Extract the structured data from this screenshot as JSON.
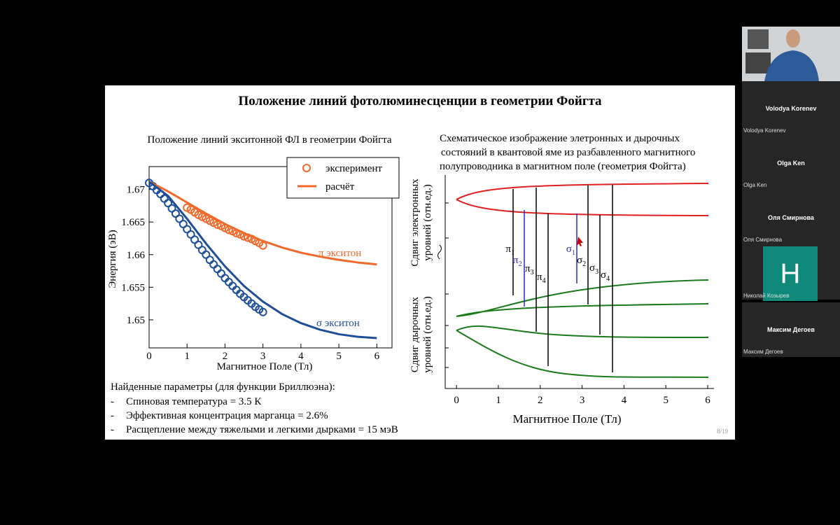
{
  "slide": {
    "title": "Положение линий фотолюминесценции в геометрии Фойгта",
    "page": "8/19",
    "left_chart": {
      "title": "Положение линий экситонной ФЛ в геометрии Фойгта",
      "x_label": "Магнитное Поле (Тл)",
      "y_label": "Энергия (эВ)",
      "xlim": [
        0,
        6.4
      ],
      "ylim": [
        1.6457,
        1.6735
      ],
      "xticks": [
        0,
        1,
        2,
        3,
        4,
        5,
        6
      ],
      "yticks": [
        1.65,
        1.655,
        1.66,
        1.665,
        1.67
      ],
      "legend": [
        "эксперимент",
        "расчёт"
      ],
      "pi_label": "π экситон",
      "sigma_label": "σ экситон",
      "series": [
        {
          "name": "π эксперимент",
          "color": "#f26a2b",
          "kind": "points",
          "x": [
            1,
            1.1,
            1.2,
            1.3,
            1.4,
            1.5,
            1.6,
            1.7,
            1.8,
            1.9,
            2,
            2.1,
            2.2,
            2.3,
            2.4,
            2.5,
            2.6,
            2.7,
            2.8,
            2.9,
            3
          ],
          "values": [
            1.6672,
            1.6669,
            1.6665,
            1.6661,
            1.6658,
            1.6655,
            1.6652,
            1.6649,
            1.6646,
            1.6644,
            1.6641,
            1.6638,
            1.6636,
            1.6633,
            1.6631,
            1.6628,
            1.6626,
            1.6624,
            1.6621,
            1.6618,
            1.6614
          ]
        },
        {
          "name": "σ эксперимент",
          "color": "#1f4e99",
          "kind": "points",
          "x": [
            0,
            0.1,
            0.2,
            0.3,
            0.4,
            0.5,
            0.6,
            0.7,
            0.8,
            0.9,
            1,
            1.1,
            1.2,
            1.3,
            1.4,
            1.5,
            1.6,
            1.7,
            1.8,
            1.9,
            2,
            2.1,
            2.2,
            2.3,
            2.4,
            2.5,
            2.6,
            2.7,
            2.8,
            2.9,
            3
          ],
          "values": [
            1.671,
            1.6705,
            1.6699,
            1.6693,
            1.6686,
            1.6679,
            1.6671,
            1.6663,
            1.6655,
            1.6647,
            1.6639,
            1.6631,
            1.6623,
            1.6615,
            1.6607,
            1.66,
            1.6592,
            1.6585,
            1.6578,
            1.6571,
            1.6564,
            1.6558,
            1.6552,
            1.6546,
            1.654,
            1.6535,
            1.653,
            1.6525,
            1.652,
            1.6516,
            1.6512
          ]
        },
        {
          "name": "π расчёт",
          "color": "#f26a2b",
          "kind": "line",
          "x": [
            0,
            0.5,
            1,
            1.5,
            2,
            2.5,
            3,
            3.5,
            4,
            4.5,
            5,
            5.5,
            6
          ],
          "values": [
            1.6712,
            1.6697,
            1.668,
            1.6663,
            1.6647,
            1.6633,
            1.6621,
            1.6611,
            1.6603,
            1.6597,
            1.6592,
            1.6588,
            1.6585
          ]
        },
        {
          "name": "σ расчёт",
          "color": "#1f4e99",
          "kind": "line",
          "x": [
            0,
            0.5,
            1,
            1.5,
            2,
            2.5,
            3,
            3.5,
            4,
            4.5,
            5,
            5.5,
            6
          ],
          "values": [
            1.6712,
            1.669,
            1.6655,
            1.6617,
            1.6582,
            1.6552,
            1.6528,
            1.6509,
            1.6495,
            1.6485,
            1.6478,
            1.6474,
            1.6472
          ]
        }
      ]
    },
    "params": {
      "heading": "Найденные параметры (для функции Бриллюэна):",
      "items": [
        "Спиновая температура = 3.5 К",
        "Эффективная концентрация марганца = 2.6%",
        "Расщепление между тяжелыми и легкими дырками = 15 мэВ"
      ]
    },
    "right_chart": {
      "title_lines": [
        "Схематическое изображение элетронных и дырочных",
        "состояний в квантовой яме из разбавленного магнитного",
        "полупроводника в магнитном поле (геометрия Фойгта)"
      ],
      "y_label_top": [
        "Сдвиг электронных",
        "уровней (отн.ед.)"
      ],
      "y_label_bottom": [
        "Сдвиг дырочных",
        "уровней (отн.ед.)"
      ],
      "x_label": "Магнитное Поле (Тл)",
      "xlim": [
        -0.27,
        6.15
      ],
      "xticks": [
        0,
        1,
        2,
        3,
        4,
        5,
        6
      ],
      "transitions": [
        {
          "symbol": "π",
          "index": "1"
        },
        {
          "symbol": "π",
          "index": "2"
        },
        {
          "symbol": "π",
          "index": "3"
        },
        {
          "symbol": "π",
          "index": "4"
        },
        {
          "symbol": "σ",
          "index": "1"
        },
        {
          "symbol": "σ",
          "index": "2"
        },
        {
          "symbol": "σ",
          "index": "3"
        },
        {
          "symbol": "σ",
          "index": "4"
        }
      ]
    }
  },
  "participants": [
    {
      "name": "Volodya Korenev",
      "label": "Volodya Korenev"
    },
    {
      "name": "Olga Ken",
      "label": "Olga Ken"
    },
    {
      "name": "Оля Смирнова",
      "label": "Оля Смирнова"
    },
    {
      "avatar": "H",
      "label": "Николай Козырев"
    },
    {
      "name": "Максим Дегоев",
      "label": "Максим Дегоев"
    }
  ]
}
